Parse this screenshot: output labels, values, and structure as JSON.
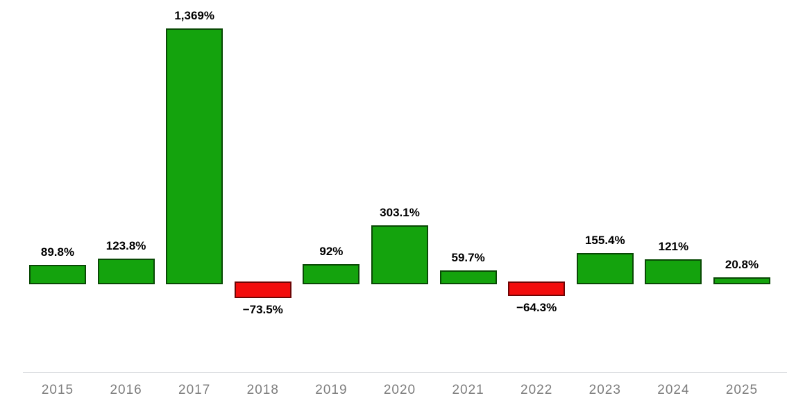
{
  "chart_data": {
    "type": "bar",
    "title": "",
    "xlabel": "",
    "ylabel": "",
    "categories": [
      "2015",
      "2016",
      "2017",
      "2018",
      "2019",
      "2020",
      "2021",
      "2022",
      "2023",
      "2024",
      "2025"
    ],
    "values": [
      89.8,
      123.8,
      1369,
      -73.5,
      92,
      303.1,
      59.7,
      -64.3,
      155.4,
      121,
      20.8
    ],
    "value_labels": [
      "89.8%",
      "123.8%",
      "1,369%",
      "−73.5%",
      "92%",
      "303.1%",
      "59.7%",
      "−64.3%",
      "155.4%",
      "121%",
      "20.8%"
    ],
    "ylim": [
      -100,
      1450
    ],
    "grid": false,
    "legend": null,
    "colors": {
      "positive_bar": "#14a30d",
      "negative_bar": "#f20d0d",
      "bar_border": "rgba(0,0,0,0.55)",
      "axis_line": "#d5d8db",
      "year_label": "#7d7d7d",
      "value_label": "#000000",
      "background": "#ffffff"
    }
  }
}
